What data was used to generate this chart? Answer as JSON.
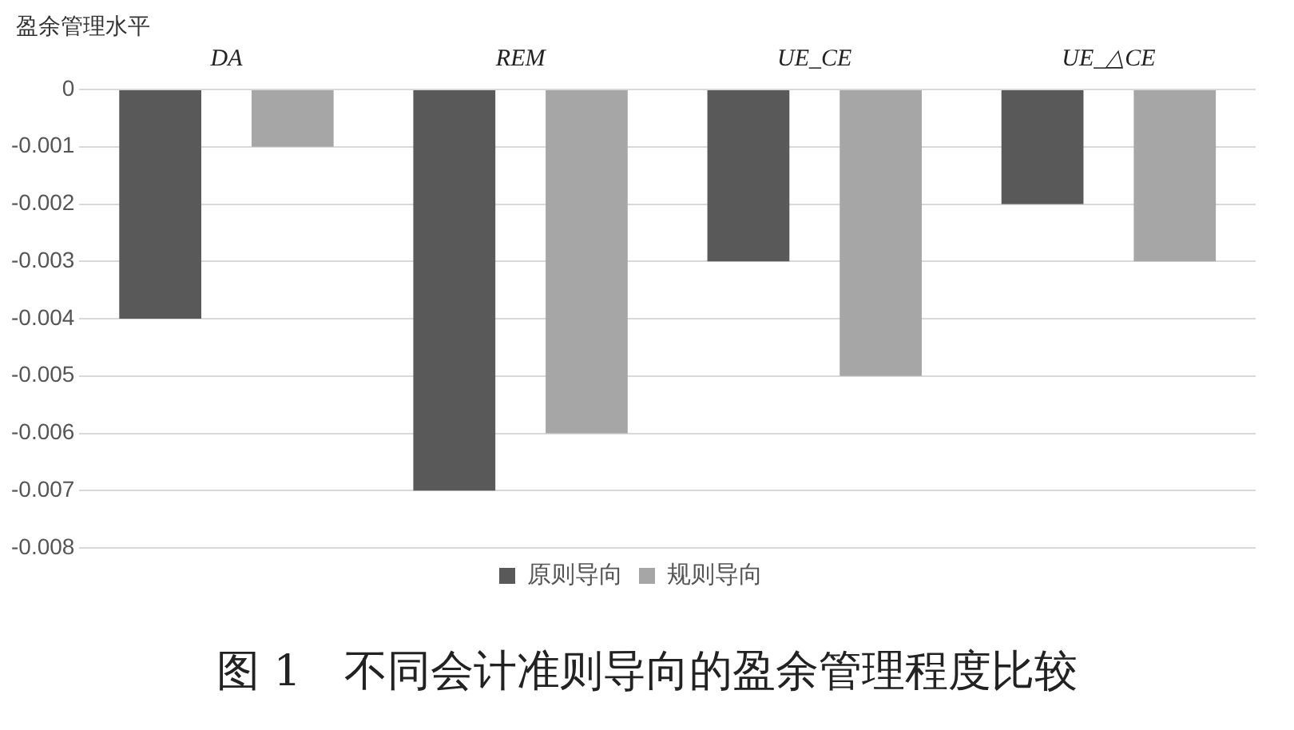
{
  "chart_data": {
    "type": "bar",
    "title": "图 1　不同会计准则导向的盈余管理程度比较",
    "ylabel": "盈余管理水平",
    "categories": [
      "DA",
      "REM",
      "UE_CE",
      "UE_△CE"
    ],
    "series": [
      {
        "name": "原则导向",
        "color": "#595959",
        "values": [
          -0.004,
          -0.007,
          -0.003,
          -0.002
        ]
      },
      {
        "name": "规则导向",
        "color": "#a6a6a6",
        "values": [
          -0.001,
          -0.006,
          -0.005,
          -0.003
        ]
      }
    ],
    "ylim": [
      -0.008,
      0
    ],
    "yticks": [
      0,
      -0.001,
      -0.002,
      -0.003,
      -0.004,
      -0.005,
      -0.006,
      -0.007,
      -0.008
    ],
    "grid": "y",
    "legend": "bottom"
  }
}
